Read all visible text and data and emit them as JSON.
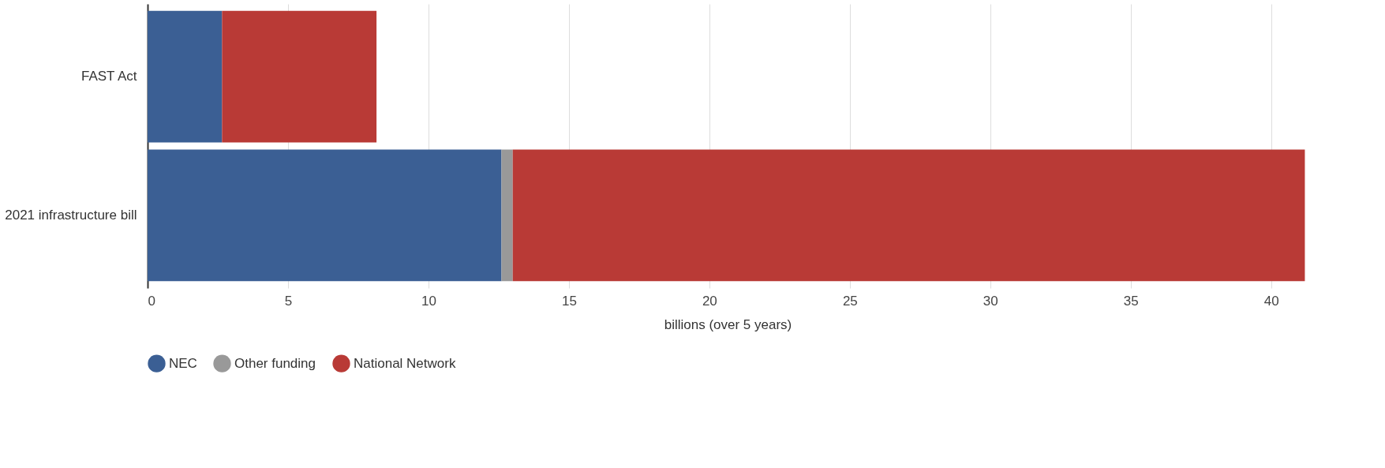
{
  "chart_data": {
    "type": "bar",
    "orientation": "horizontal",
    "stacked": true,
    "categories": [
      "FAST Act",
      "2021 infrastructure bill"
    ],
    "series": [
      {
        "name": "NEC",
        "color": "#3b5f94",
        "values": [
          2.65,
          12.6
        ]
      },
      {
        "name": "Other funding",
        "color": "#999999",
        "values": [
          null,
          0.4
        ]
      },
      {
        "name": "National Network",
        "color": "#b93a36",
        "values": [
          5.5,
          28.2
        ]
      }
    ],
    "xlabel": "billions (over 5 years)",
    "xlim": [
      0,
      41.3
    ],
    "xticks": [
      0,
      5,
      10,
      15,
      20,
      25,
      30,
      35,
      40
    ],
    "grid": "x",
    "legend": "bottom"
  }
}
